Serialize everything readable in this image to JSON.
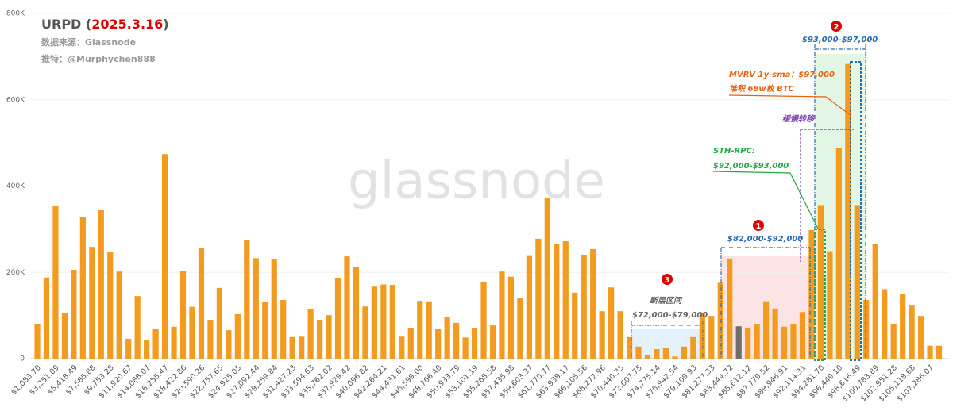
{
  "chart_data": {
    "type": "bar",
    "title_parts": [
      {
        "text": "URPD (",
        "color": "#555555"
      },
      {
        "text": "2025.3.16",
        "color": "#e00000"
      },
      {
        "text": ")",
        "color": "#555555"
      }
    ],
    "subtitles": [
      "数据来源：Glassnode",
      "推特：@Murphychen888"
    ],
    "watermark": "glassnode",
    "categories": [
      "$1,083.70",
      null,
      "$3,251.09",
      null,
      "$5,418.49",
      null,
      "$7,585.88",
      null,
      "$9,753.28",
      null,
      "$11,920.67",
      null,
      "$14,088.07",
      null,
      "$16,255.47",
      null,
      "$18,422.86",
      null,
      "$20,590.26",
      null,
      "$22,757.65",
      null,
      "$24,925.05",
      null,
      "$27,092.44",
      null,
      "$29,259.84",
      null,
      "$31,427.23",
      null,
      "$33,594.63",
      null,
      "$35,762.02",
      null,
      "$37,929.42",
      null,
      "$40,096.82",
      null,
      "$42,264.21",
      null,
      "$44,431.61",
      null,
      "$46,599.00",
      null,
      "$48,766.40",
      null,
      "$50,933.79",
      null,
      "$53,101.19",
      null,
      "$55,268.58",
      null,
      "$57,435.98",
      null,
      "$59,603.37",
      null,
      "$61,770.77",
      null,
      "$63,938.17",
      null,
      "$66,105.56",
      null,
      "$68,272.96",
      null,
      "$70,440.35",
      null,
      "$72,607.75",
      null,
      "$74,775.14",
      null,
      "$76,942.54",
      null,
      "$79,109.93",
      null,
      "$81,277.33",
      null,
      "$83,444.72",
      null,
      "$85,612.12",
      null,
      "$87,779.52",
      null,
      "$89,946.91",
      null,
      "$92,114.31",
      null,
      "$94,281.70",
      null,
      "$96,449.10",
      null,
      "$98,616.49",
      null,
      "$100,783.89",
      null,
      "$102,951.28",
      null,
      "$105,118.68",
      null,
      "$107,286.07",
      null
    ],
    "values": [
      81000,
      188000,
      353000,
      105000,
      206000,
      329000,
      259000,
      344000,
      248000,
      202000,
      46000,
      145000,
      44000,
      68000,
      474000,
      74000,
      204000,
      120000,
      256000,
      90000,
      164000,
      66000,
      103000,
      276000,
      233000,
      131000,
      230000,
      136000,
      50000,
      51000,
      116000,
      90000,
      101000,
      186000,
      237000,
      213000,
      121000,
      167000,
      172000,
      171000,
      51000,
      70000,
      134000,
      133000,
      68000,
      96000,
      83000,
      49000,
      71000,
      178000,
      77000,
      202000,
      190000,
      140000,
      238000,
      278000,
      373000,
      265000,
      272000,
      153000,
      239000,
      254000,
      110000,
      165000,
      110000,
      50000,
      28000,
      9000,
      22000,
      24000,
      5000,
      28000,
      50000,
      107000,
      99000,
      176000,
      232000,
      75000,
      72000,
      81000,
      133000,
      116000,
      74000,
      81000,
      108000,
      298000,
      356000,
      249000,
      489000,
      683000,
      356000,
      136000,
      266000,
      161000,
      81000,
      150000,
      123000,
      99000,
      30000,
      30000
    ],
    "color": "#f39b1e",
    "highlight_color": "#6e6e6e",
    "highlight_index": 77,
    "ylim": [
      0,
      800000
    ],
    "yticks": [
      0,
      {
        "value": 200000,
        "label": "200K"
      },
      {
        "value": 400000,
        "label": "400K"
      },
      {
        "value": 600000,
        "label": "600K"
      },
      {
        "value": 800000,
        "label": "800K"
      }
    ],
    "grid": true,
    "annotations": [
      "$82,000-$92,000",
      "$93,000-$97,000",
      "$72,000-$79,000",
      "断层区间",
      "MVRV 1y-sma：$97,000",
      "堆积 68w枚 BTC",
      "缓慢转移",
      "STH-RPC:",
      "$92,000-$93,000"
    ],
    "markers": [
      "1",
      "2",
      "3"
    ]
  }
}
